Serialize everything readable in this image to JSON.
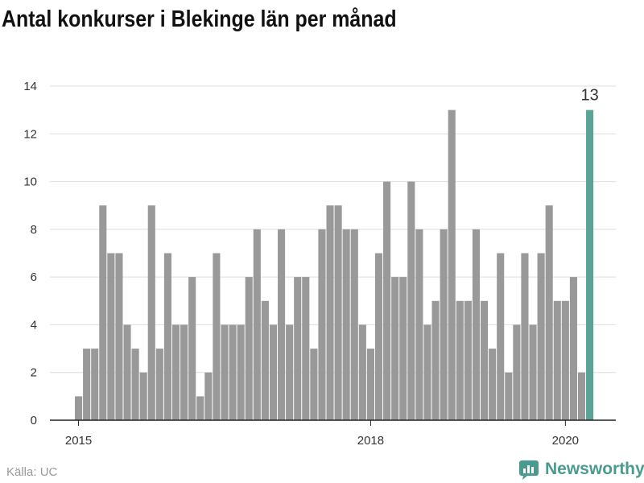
{
  "title": "Antal konkurser i Blekinge län per månad",
  "source": "Källa: UC",
  "brand": {
    "name": "Newsworthy",
    "icon": "newsworthy-logo-icon"
  },
  "colors": {
    "bar": "#999999",
    "highlight": "#5aa397",
    "grid": "#dddddd",
    "axis": "#222222",
    "text": "#333333"
  },
  "chart_data": {
    "type": "bar",
    "title": "Antal konkurser i Blekinge län per månad",
    "xlabel": "",
    "ylabel": "",
    "ylim": [
      0,
      14
    ],
    "yticks": [
      0,
      2,
      4,
      6,
      8,
      10,
      12,
      14
    ],
    "xticks": [
      {
        "label": "2015",
        "index": 0
      },
      {
        "label": "2018",
        "index": 36
      },
      {
        "label": "2020",
        "index": 60
      }
    ],
    "grid": true,
    "start": "2015-01",
    "values": [
      1,
      3,
      3,
      9,
      7,
      7,
      4,
      3,
      2,
      9,
      3,
      7,
      4,
      4,
      6,
      1,
      2,
      7,
      4,
      4,
      4,
      6,
      8,
      5,
      4,
      8,
      4,
      6,
      6,
      3,
      8,
      9,
      9,
      8,
      8,
      4,
      3,
      7,
      10,
      6,
      6,
      10,
      8,
      4,
      5,
      8,
      13,
      5,
      5,
      8,
      5,
      3,
      7,
      2,
      4,
      7,
      4,
      7,
      9,
      5,
      5,
      6,
      2,
      13
    ],
    "highlight": {
      "index": 63,
      "label": "13"
    }
  }
}
